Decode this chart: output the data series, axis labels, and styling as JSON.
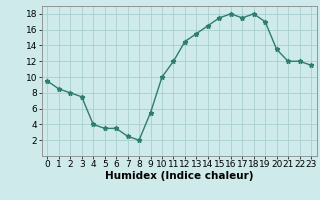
{
  "x": [
    0,
    1,
    2,
    3,
    4,
    5,
    6,
    7,
    8,
    9,
    10,
    11,
    12,
    13,
    14,
    15,
    16,
    17,
    18,
    19,
    20,
    21,
    22,
    23
  ],
  "y": [
    9.5,
    8.5,
    8.0,
    7.5,
    4.0,
    3.5,
    3.5,
    2.5,
    2.0,
    5.5,
    10.0,
    12.0,
    14.5,
    15.5,
    16.5,
    17.5,
    18.0,
    17.5,
    18.0,
    17.0,
    13.5,
    12.0,
    12.0,
    11.5
  ],
  "xlabel": "Humidex (Indice chaleur)",
  "xlim": [
    -0.5,
    23.5
  ],
  "ylim": [
    0,
    19
  ],
  "yticks": [
    2,
    4,
    6,
    8,
    10,
    12,
    14,
    16,
    18
  ],
  "xticks": [
    0,
    1,
    2,
    3,
    4,
    5,
    6,
    7,
    8,
    9,
    10,
    11,
    12,
    13,
    14,
    15,
    16,
    17,
    18,
    19,
    20,
    21,
    22,
    23
  ],
  "line_color": "#2e7d6e",
  "marker": "*",
  "markersize": 3.5,
  "bg_color": "#ceeaea",
  "grid_color": "#aacfcf",
  "xlabel_fontsize": 7.5,
  "tick_fontsize": 6.5,
  "linewidth": 1.0
}
